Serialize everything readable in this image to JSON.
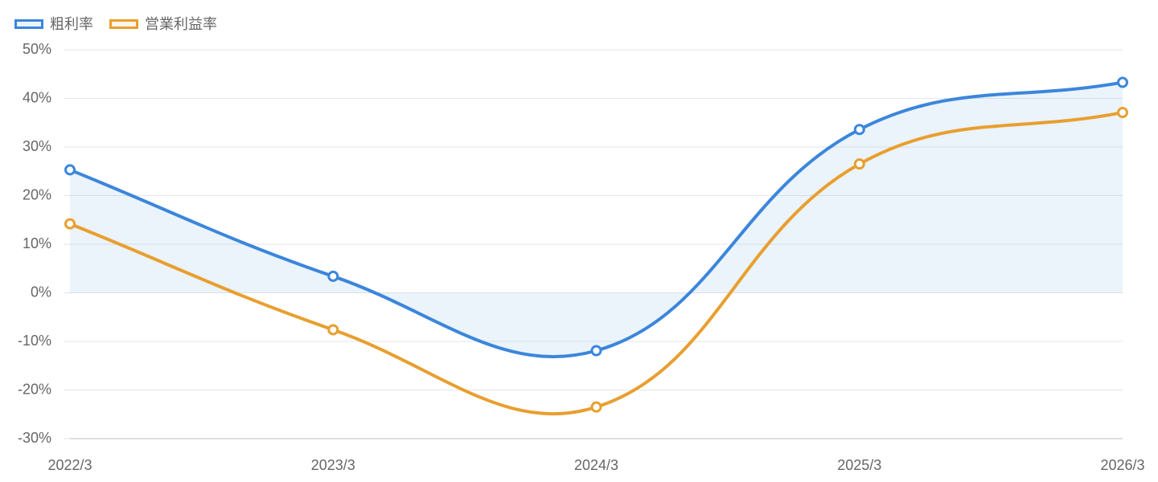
{
  "chart_data": {
    "type": "line",
    "categories": [
      "2022/3",
      "2023/3",
      "2024/3",
      "2025/3",
      "2026/3"
    ],
    "series": [
      {
        "name": "粗利率",
        "color": "#3b86db",
        "values": [
          25.3,
          3.4,
          -11.9,
          33.6,
          43.3
        ],
        "fill": true
      },
      {
        "name": "営業利益率",
        "color": "#e89f2f",
        "values": [
          14.2,
          -7.6,
          -23.5,
          26.5,
          37.1
        ]
      }
    ],
    "ylim": [
      -30,
      50
    ],
    "yticks": [
      {
        "value": -30,
        "label": "-30%"
      },
      {
        "value": -20,
        "label": "-20%"
      },
      {
        "value": -10,
        "label": "-10%"
      },
      {
        "value": 0,
        "label": "0%"
      },
      {
        "value": 10,
        "label": "10%"
      },
      {
        "value": 20,
        "label": "20%"
      },
      {
        "value": 30,
        "label": "30%"
      },
      {
        "value": 40,
        "label": "40%"
      },
      {
        "value": 50,
        "label": "50%"
      }
    ],
    "grid": true,
    "legend": "top-left"
  }
}
